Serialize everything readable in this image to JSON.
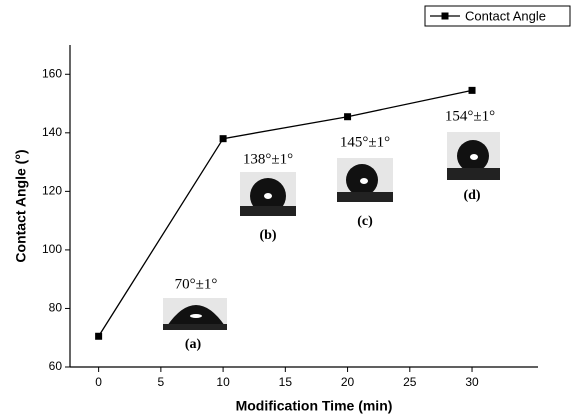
{
  "chart_data": {
    "type": "line",
    "x_label": "Modification Time (min)",
    "y_label": "Contact Angle (°)",
    "x": [
      0,
      10,
      20,
      30
    ],
    "series": [
      {
        "name": "Contact Angle",
        "color": "#000000",
        "values": [
          70.5,
          138,
          145.5,
          154.5
        ]
      }
    ],
    "xlim": [
      -2.3,
      35.3
    ],
    "ylim": [
      60,
      170
    ],
    "xticks": [
      0,
      5,
      10,
      15,
      20,
      25,
      30
    ],
    "yticks": [
      60,
      80,
      100,
      120,
      140,
      160
    ],
    "legend": "upper right",
    "annotations": [
      "70°±1°",
      "(a)",
      "138°±1°",
      "(b)",
      "145°±1°",
      "(c)",
      "154°±1°",
      "(d)"
    ]
  }
}
